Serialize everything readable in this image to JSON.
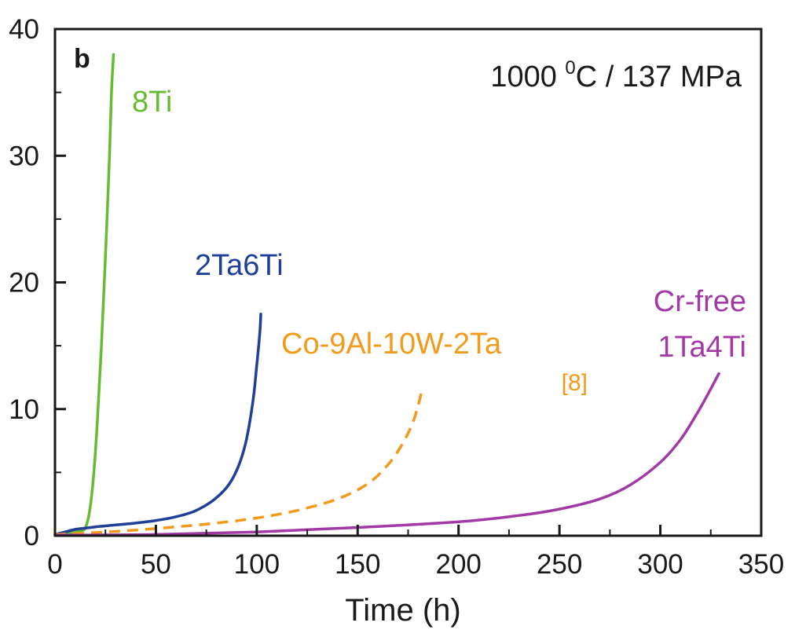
{
  "chart_data": {
    "type": "line",
    "panel_label": "b",
    "condition": {
      "prefix": "1000 ",
      "superscript": "0",
      "suffix": "C / 137 MPa"
    },
    "xlabel": "Time (h)",
    "ylabel": "",
    "xlim": [
      0,
      350
    ],
    "ylim": [
      0,
      40
    ],
    "x_ticks": [
      0,
      50,
      100,
      150,
      200,
      250,
      300,
      350
    ],
    "y_ticks": [
      0,
      10,
      20,
      30,
      40
    ],
    "grid": false,
    "legend": "none (curves labelled directly)",
    "series": [
      {
        "name": "8Ti",
        "color": "#66bb33",
        "dash": false,
        "points": [
          [
            0,
            0.1
          ],
          [
            5,
            0.2
          ],
          [
            10,
            0.3
          ],
          [
            13,
            0.4
          ],
          [
            15,
            0.6
          ],
          [
            17,
            1.8
          ],
          [
            19,
            4.5
          ],
          [
            21,
            9
          ],
          [
            23,
            15
          ],
          [
            25,
            22
          ],
          [
            27,
            30
          ],
          [
            28,
            35
          ],
          [
            29,
            38
          ]
        ]
      },
      {
        "name": "2Ta6Ti",
        "color": "#1f3f99",
        "dash": false,
        "points": [
          [
            0,
            0.1
          ],
          [
            5,
            0.3
          ],
          [
            10,
            0.5
          ],
          [
            15,
            0.6
          ],
          [
            20,
            0.7
          ],
          [
            30,
            0.85
          ],
          [
            40,
            1.0
          ],
          [
            50,
            1.2
          ],
          [
            60,
            1.5
          ],
          [
            70,
            2.0
          ],
          [
            80,
            3.0
          ],
          [
            88,
            4.5
          ],
          [
            94,
            7
          ],
          [
            98,
            10.5
          ],
          [
            100,
            13.5
          ],
          [
            101.5,
            16
          ],
          [
            102,
            17.5
          ]
        ]
      },
      {
        "name": "Co-9Al-10W-2Ta",
        "ref": "[8]",
        "color": "#f39a1c",
        "dash": true,
        "points": [
          [
            0,
            0.1
          ],
          [
            20,
            0.25
          ],
          [
            40,
            0.45
          ],
          [
            60,
            0.7
          ],
          [
            80,
            1.0
          ],
          [
            100,
            1.4
          ],
          [
            120,
            2.0
          ],
          [
            140,
            2.9
          ],
          [
            155,
            4.1
          ],
          [
            165,
            5.6
          ],
          [
            172,
            7.2
          ],
          [
            177,
            8.8
          ],
          [
            180,
            10.3
          ],
          [
            182,
            11.6
          ]
        ]
      },
      {
        "name_lines": [
          "Cr-free",
          "1Ta4Ti"
        ],
        "color": "#a23aa6",
        "dash": false,
        "points": [
          [
            0,
            0.05
          ],
          [
            50,
            0.1
          ],
          [
            100,
            0.3
          ],
          [
            150,
            0.65
          ],
          [
            200,
            1.1
          ],
          [
            230,
            1.6
          ],
          [
            250,
            2.1
          ],
          [
            270,
            2.9
          ],
          [
            285,
            4.0
          ],
          [
            300,
            5.8
          ],
          [
            310,
            7.6
          ],
          [
            318,
            9.6
          ],
          [
            324,
            11.3
          ],
          [
            329,
            12.8
          ]
        ]
      }
    ]
  }
}
